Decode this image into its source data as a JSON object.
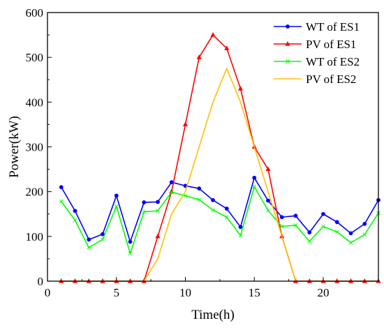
{
  "chart_data": {
    "type": "line",
    "title": "",
    "xlabel": "Time(h)",
    "ylabel": "Power(kW)",
    "xlim": [
      0,
      24
    ],
    "ylim": [
      0,
      600
    ],
    "xticks": [
      0,
      5,
      10,
      15,
      20
    ],
    "yticks": [
      0,
      100,
      200,
      300,
      400,
      500,
      600
    ],
    "grid": false,
    "legend_position": "top-right",
    "x": [
      1,
      2,
      3,
      4,
      5,
      6,
      7,
      8,
      9,
      10,
      11,
      12,
      13,
      14,
      15,
      16,
      17,
      18,
      19,
      20,
      21,
      22,
      23,
      24
    ],
    "series": [
      {
        "name": "WT of ES1",
        "color": "#0000ff",
        "marker": "circle",
        "values": [
          210,
          157,
          93,
          105,
          191,
          88,
          176,
          177,
          221,
          213,
          207,
          181,
          162,
          121,
          231,
          180,
          143,
          146,
          109,
          150,
          132,
          107,
          128,
          181
        ]
      },
      {
        "name": "PV of ES1",
        "color": "#ff0000",
        "marker": "triangle",
        "values": [
          0,
          0,
          0,
          0,
          0,
          0,
          0,
          100,
          200,
          350,
          500,
          550,
          520,
          430,
          300,
          250,
          100,
          0,
          0,
          0,
          0,
          0,
          0,
          0
        ]
      },
      {
        "name": "WT of ES2",
        "color": "#00ff00",
        "marker": "x",
        "values": [
          178,
          136,
          75,
          93,
          167,
          62,
          155,
          157,
          199,
          191,
          182,
          159,
          143,
          102,
          211,
          158,
          122,
          125,
          89,
          122,
          110,
          86,
          104,
          152
        ]
      },
      {
        "name": "PV of ES2",
        "color": "#ffc000",
        "marker": "none",
        "values": [
          0,
          0,
          0,
          0,
          0,
          0,
          0,
          50,
          150,
          200,
          300,
          400,
          475,
          400,
          300,
          200,
          100,
          0,
          0,
          0,
          0,
          0,
          0,
          0
        ]
      }
    ]
  }
}
